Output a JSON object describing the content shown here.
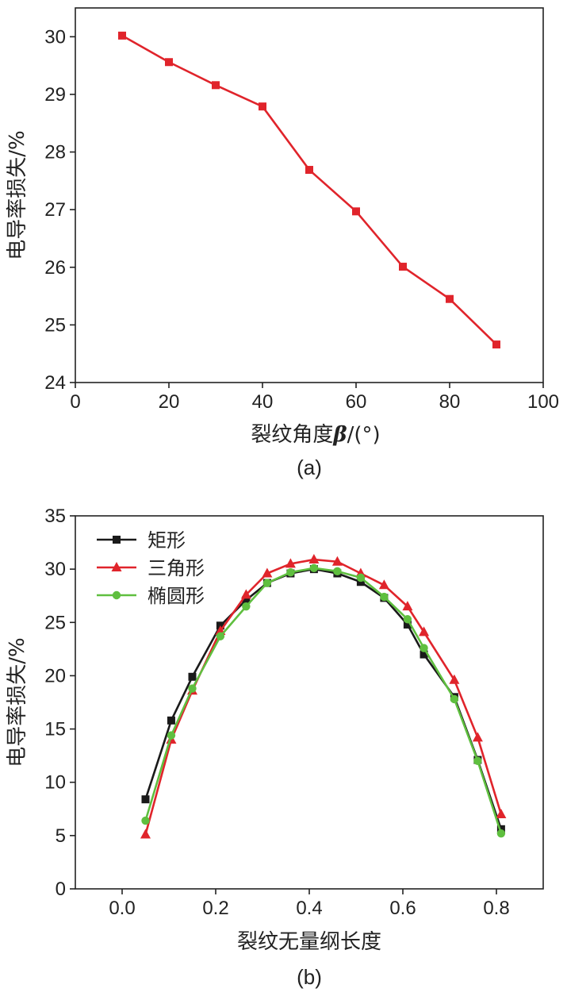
{
  "chart_data": [
    {
      "id": "a",
      "type": "line",
      "caption": "(a)",
      "xlabel": "裂纹角度β/(°)",
      "xlabel_main": "裂纹角度",
      "xlabel_symbol": "β",
      "xlabel_unit": "/(°)",
      "ylabel": "电导率损失/%",
      "xlim": [
        0,
        100
      ],
      "ylim": [
        24,
        30.5
      ],
      "xticks": [
        0,
        20,
        40,
        60,
        80,
        100
      ],
      "yticks": [
        24,
        25,
        26,
        27,
        28,
        29,
        30
      ],
      "grid": false,
      "series": [
        {
          "name": "",
          "color": "#e0242b",
          "marker": "square",
          "x": [
            10,
            20,
            30,
            40,
            50,
            60,
            70,
            80,
            90
          ],
          "y": [
            30.02,
            29.56,
            29.16,
            28.79,
            27.69,
            26.97,
            26.01,
            25.45,
            24.66
          ]
        }
      ]
    },
    {
      "id": "b",
      "type": "line",
      "caption": "(b)",
      "xlabel": "裂纹无量纲长度",
      "ylabel": "电导率损失/%",
      "xlim": [
        -0.1,
        0.9
      ],
      "ylim": [
        0,
        35
      ],
      "xticks": [
        0.0,
        0.2,
        0.4,
        0.6,
        0.8
      ],
      "xtick_labels": [
        "0.0",
        "0.2",
        "0.4",
        "0.6",
        "0.8"
      ],
      "yticks": [
        0,
        5,
        10,
        15,
        20,
        25,
        30,
        35
      ],
      "grid": false,
      "legend_position": "top-left",
      "series": [
        {
          "name": "矩形",
          "color": "#1a1a1a",
          "marker": "square",
          "x": [
            0.05,
            0.105,
            0.15,
            0.21,
            0.265,
            0.31,
            0.36,
            0.41,
            0.46,
            0.51,
            0.56,
            0.61,
            0.645,
            0.71,
            0.76,
            0.81
          ],
          "y": [
            8.4,
            15.8,
            19.9,
            24.7,
            27.1,
            28.7,
            29.6,
            30.0,
            29.6,
            28.8,
            27.3,
            24.8,
            22.0,
            18.0,
            12.1,
            5.6
          ]
        },
        {
          "name": "三角形",
          "color": "#e0242b",
          "marker": "triangle",
          "x": [
            0.05,
            0.105,
            0.15,
            0.21,
            0.265,
            0.31,
            0.36,
            0.41,
            0.46,
            0.51,
            0.56,
            0.61,
            0.645,
            0.71,
            0.76,
            0.81
          ],
          "y": [
            5.1,
            14.0,
            18.6,
            24.2,
            27.6,
            29.6,
            30.5,
            30.9,
            30.7,
            29.6,
            28.5,
            26.5,
            24.1,
            19.6,
            14.2,
            7.0
          ]
        },
        {
          "name": "椭圆形",
          "color": "#5fbf3f",
          "marker": "circle",
          "x": [
            0.05,
            0.105,
            0.15,
            0.21,
            0.265,
            0.31,
            0.36,
            0.41,
            0.46,
            0.51,
            0.56,
            0.61,
            0.645,
            0.71,
            0.76,
            0.81
          ],
          "y": [
            6.4,
            14.4,
            18.8,
            23.7,
            26.5,
            28.7,
            29.7,
            30.1,
            29.8,
            29.2,
            27.4,
            25.3,
            22.6,
            17.8,
            12.0,
            5.2
          ]
        }
      ]
    }
  ]
}
